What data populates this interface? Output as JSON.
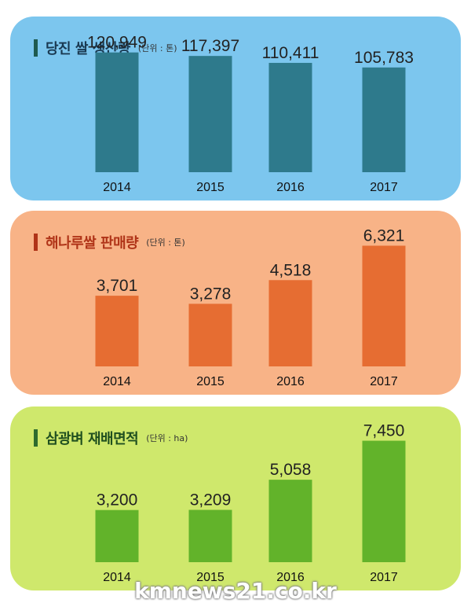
{
  "watermark": "kmnews21.co.kr",
  "chart_data": [
    {
      "type": "bar",
      "title": "당진 쌀 생산량",
      "unit": "(단위 : 톤)",
      "categories": [
        "2014",
        "2015",
        "2016",
        "2017"
      ],
      "values": [
        120949,
        117397,
        110411,
        105783
      ],
      "value_labels": [
        "120,949",
        "117,397",
        "110,411",
        "105,783"
      ],
      "ylim": [
        0,
        135000
      ],
      "panel_color": "#7cc6ee",
      "bar_color": "#2e7a8c",
      "title_color": "#1a3a52",
      "mark_color": "#1e5a50"
    },
    {
      "type": "bar",
      "title": "해나루쌀 판매량",
      "unit": "(단위 : 톤)",
      "categories": [
        "2014",
        "2015",
        "2016",
        "2017"
      ],
      "values": [
        3701,
        3278,
        4518,
        6321
      ],
      "value_labels": [
        "3,701",
        "3,278",
        "4,518",
        "6,321"
      ],
      "ylim": [
        0,
        7000
      ],
      "panel_color": "#f8b387",
      "bar_color": "#e66d32",
      "title_color": "#b03418",
      "mark_color": "#b03418"
    },
    {
      "type": "bar",
      "title": "삼광벼 재배면적",
      "unit": "(단위 : ha)",
      "categories": [
        "2014",
        "2015",
        "2016",
        "2017"
      ],
      "values": [
        3200,
        3209,
        5058,
        7450
      ],
      "value_labels": [
        "3,200",
        "3,209",
        "5,058",
        "7,450"
      ],
      "ylim": [
        0,
        8200
      ],
      "panel_color": "#cfe86c",
      "bar_color": "#62b32a",
      "title_color": "#1f4f1f",
      "mark_color": "#2e6b2e"
    }
  ]
}
